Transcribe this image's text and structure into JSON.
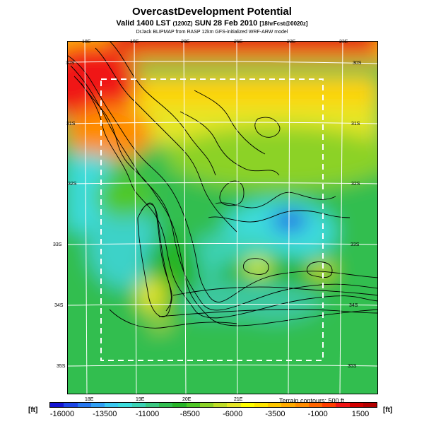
{
  "title": "OvercastDevelopment Potential",
  "subtitle_main": "Valid 1400 LST",
  "subtitle_small1": "(1200Z)",
  "subtitle_main2": "SUN 28 Feb 2010",
  "subtitle_small2": "[18hrFcst@0020z]",
  "credit": "DrJack BLIPMAP from RASP 12km GFS-initialized WRF-ARW model",
  "lon_labels_top": [
    "18E",
    "19E",
    "20E",
    "21E",
    "22E",
    "23E"
  ],
  "lon_labels_bottom": [
    "18E",
    "19E",
    "20E",
    "21E"
  ],
  "lat_labels_left": [
    "30S",
    "31S",
    "32S",
    "33S",
    "34S",
    "35S"
  ],
  "lat_labels_right": [
    "30S",
    "31S",
    "32S",
    "33S",
    "34S",
    "35S"
  ],
  "terrain_note": "Terrain contours: 500 ft",
  "unit_left": "[ft]",
  "unit_right": "[ft]",
  "colorbar": {
    "ticks": [
      "-16000",
      "-13500",
      "-11000",
      "-8500",
      "-6000",
      "-3500",
      "-1000",
      "1500"
    ],
    "colors": [
      "#1414d2",
      "#1e46e6",
      "#2878f0",
      "#32a0f5",
      "#3cc8f0",
      "#3cdcdc",
      "#3cd2b4",
      "#3cc882",
      "#32be50",
      "#28b428",
      "#50c828",
      "#8cd228",
      "#bedc28",
      "#e6e628",
      "#ffff00",
      "#ffe600",
      "#ffc800",
      "#ffaa00",
      "#ff8c00",
      "#ff6400",
      "#ff3c00",
      "#f01414",
      "#d20000",
      "#b40000"
    ]
  },
  "colors": {
    "frame": "#000000",
    "grid": "#ffffff",
    "box": "#ffffff"
  }
}
